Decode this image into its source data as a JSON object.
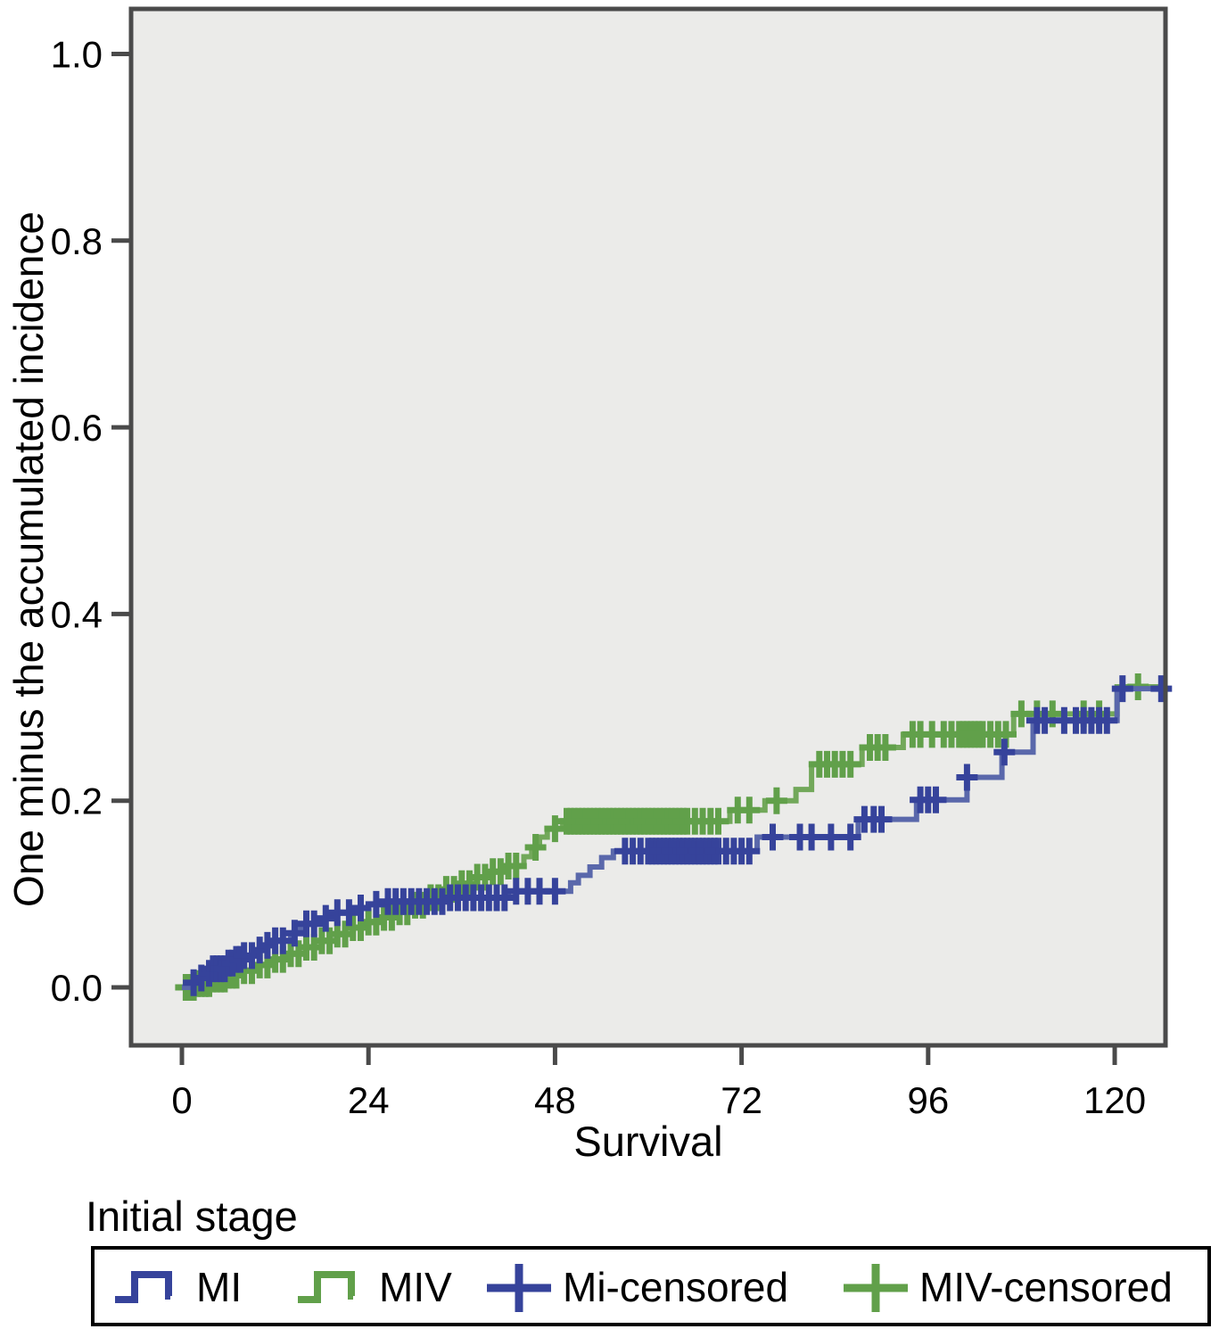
{
  "chart_data": {
    "type": "line",
    "subtype": "step-cumulative-incidence-survival",
    "title": "",
    "xlabel": "Survival",
    "ylabel": "One minus the accumulated incidence",
    "legend_title": "Initial stage",
    "legend_position": "bottom",
    "grid": false,
    "plot_bg": "#ebebe9",
    "frame_color": "#4a4a4a",
    "xlim": [
      -6.5,
      126.5
    ],
    "ylim": [
      -0.06,
      1.05
    ],
    "x_end": 126.5,
    "xticks": [
      0,
      24,
      48,
      72,
      96,
      120
    ],
    "yticks": [
      0.0,
      0.2,
      0.4,
      0.6,
      0.8,
      1.0
    ],
    "ytick_labels": [
      "0.0",
      "0.2",
      "0.4",
      "0.6",
      "0.8",
      "1.0"
    ],
    "legend": [
      {
        "label": "MI",
        "type": "step",
        "series": "MI"
      },
      {
        "label": "MIV",
        "type": "step",
        "series": "MIV"
      },
      {
        "label": "Mi-censored",
        "type": "plus",
        "series": "MI"
      },
      {
        "label": "MIV-censored",
        "type": "plus",
        "series": "MIV"
      }
    ],
    "series": [
      {
        "name": "MIV",
        "line_color": "#72a85a",
        "censor_color": "#61a04a",
        "points": [
          [
            0,
            0.0
          ],
          [
            2,
            0.004
          ],
          [
            4,
            0.009
          ],
          [
            6,
            0.013
          ],
          [
            8,
            0.018
          ],
          [
            10,
            0.024
          ],
          [
            12,
            0.03
          ],
          [
            14,
            0.036
          ],
          [
            16,
            0.043
          ],
          [
            18,
            0.05
          ],
          [
            20,
            0.057
          ],
          [
            22,
            0.064
          ],
          [
            24,
            0.07
          ],
          [
            26,
            0.075
          ],
          [
            28,
            0.081
          ],
          [
            30,
            0.088
          ],
          [
            32,
            0.096
          ],
          [
            34,
            0.105
          ],
          [
            36,
            0.111
          ],
          [
            38,
            0.118
          ],
          [
            40,
            0.124
          ],
          [
            42,
            0.13
          ],
          [
            44,
            0.14
          ],
          [
            45,
            0.15
          ],
          [
            46,
            0.161
          ],
          [
            47,
            0.17
          ],
          [
            49,
            0.178
          ],
          [
            70.5,
            0.19
          ],
          [
            75,
            0.2
          ],
          [
            79,
            0.212
          ],
          [
            81,
            0.239
          ],
          [
            87.5,
            0.257
          ],
          [
            92.8,
            0.271
          ],
          [
            107,
            0.293
          ],
          [
            120.3,
            0.322
          ]
        ],
        "censor_times": [
          0.5,
          1,
          1.5,
          2,
          2.5,
          3,
          3.5,
          4,
          4.5,
          5,
          5.5,
          6,
          6.5,
          7,
          8,
          9,
          10,
          11,
          12,
          13,
          14,
          15,
          16,
          17,
          18,
          19,
          20,
          21,
          22,
          23,
          24,
          25,
          26,
          27,
          28,
          29,
          30,
          31,
          32,
          33,
          34,
          35,
          36,
          37,
          38,
          39,
          40,
          41,
          42,
          43,
          45.5,
          48,
          49.5,
          50,
          50.5,
          51,
          51.5,
          52,
          52.5,
          53,
          53.5,
          54,
          54.5,
          55,
          55.5,
          56,
          56.5,
          57,
          57.5,
          58,
          58.5,
          59,
          59.5,
          60,
          60.5,
          61,
          61.5,
          62,
          62.5,
          63,
          63.5,
          64,
          64.5,
          65,
          66,
          67,
          68,
          69,
          71.5,
          73,
          76.5,
          82,
          83,
          84,
          85,
          86,
          88.5,
          89.5,
          90.5,
          94,
          95,
          96.5,
          98,
          99,
          100,
          100.5,
          101,
          101.5,
          102,
          102.5,
          103,
          104,
          105,
          106,
          108,
          110,
          112,
          116,
          118,
          123
        ]
      },
      {
        "name": "MI",
        "line_color": "#5a68ab",
        "censor_color": "#36439b",
        "points": [
          [
            0,
            0.0
          ],
          [
            1,
            0.005
          ],
          [
            2,
            0.01
          ],
          [
            3,
            0.015
          ],
          [
            4,
            0.02
          ],
          [
            6,
            0.026
          ],
          [
            7,
            0.03
          ],
          [
            8,
            0.034
          ],
          [
            10,
            0.04
          ],
          [
            11,
            0.045
          ],
          [
            12,
            0.05
          ],
          [
            14,
            0.058
          ],
          [
            15,
            0.063
          ],
          [
            16,
            0.068
          ],
          [
            18,
            0.074
          ],
          [
            20,
            0.08
          ],
          [
            22,
            0.085
          ],
          [
            24,
            0.089
          ],
          [
            26,
            0.092
          ],
          [
            34,
            0.096
          ],
          [
            42,
            0.103
          ],
          [
            50,
            0.112
          ],
          [
            51,
            0.12
          ],
          [
            52.5,
            0.129
          ],
          [
            54,
            0.139
          ],
          [
            55.5,
            0.146
          ],
          [
            74,
            0.161
          ],
          [
            87,
            0.18
          ],
          [
            94.5,
            0.201
          ],
          [
            101,
            0.225
          ],
          [
            105.5,
            0.252
          ],
          [
            109.5,
            0.286
          ],
          [
            120.3,
            0.32
          ]
        ],
        "censor_times": [
          1.5,
          2.5,
          3.5,
          4,
          4.5,
          5,
          5.5,
          6,
          6.5,
          7,
          7.5,
          8,
          9,
          10,
          11,
          12,
          13,
          14.5,
          16,
          17,
          18.5,
          20,
          21.5,
          23,
          25,
          26.5,
          27.5,
          28.5,
          29.5,
          30.5,
          31.5,
          32.5,
          33.5,
          34.5,
          35.5,
          36.5,
          37.5,
          38.5,
          39.5,
          40.5,
          41.5,
          43,
          44.5,
          46,
          48,
          57,
          58,
          59,
          60,
          60.5,
          61,
          61.5,
          62,
          62.5,
          63,
          63.5,
          64,
          64.5,
          65,
          65.5,
          66,
          66.5,
          67,
          67.5,
          68,
          68.5,
          69,
          70,
          71,
          72,
          73,
          76,
          79.5,
          81,
          83.5,
          86,
          87.8,
          89,
          90,
          95,
          96,
          97,
          101,
          105.8,
          110,
          111,
          113.5,
          115,
          116,
          117,
          118,
          119,
          121,
          126
        ]
      }
    ]
  }
}
